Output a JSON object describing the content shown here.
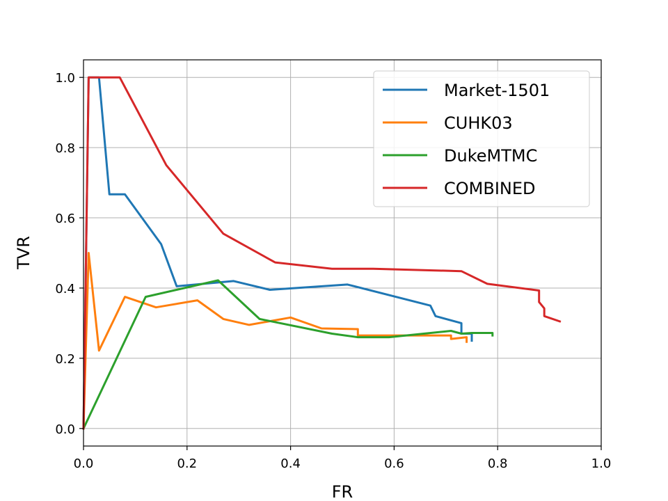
{
  "chart_data": {
    "type": "line",
    "title": "",
    "xlabel": "FR",
    "ylabel": "TVR",
    "xlim": [
      0.0,
      1.0
    ],
    "ylim": [
      -0.05,
      1.05
    ],
    "xticks": [
      0.0,
      0.2,
      0.4,
      0.6,
      0.8,
      1.0
    ],
    "xtick_labels": [
      "0.0",
      "0.2",
      "0.4",
      "0.6",
      "0.8",
      "1.0"
    ],
    "yticks": [
      0.0,
      0.2,
      0.4,
      0.6,
      0.8,
      1.0
    ],
    "ytick_labels": [
      "0.0",
      "0.2",
      "0.4",
      "0.6",
      "0.8",
      "1.0"
    ],
    "grid": true,
    "legend_position": "top-right",
    "series": [
      {
        "name": "Market-1501",
        "color": "#1f77b4",
        "x": [
          0.0,
          0.01,
          0.03,
          0.05,
          0.08,
          0.15,
          0.18,
          0.29,
          0.36,
          0.51,
          0.67,
          0.68,
          0.73,
          0.73,
          0.75,
          0.75
        ],
        "y": [
          0.0,
          1.0,
          1.0,
          0.667,
          0.667,
          0.525,
          0.405,
          0.42,
          0.395,
          0.41,
          0.35,
          0.32,
          0.3,
          0.27,
          0.27,
          0.25
        ]
      },
      {
        "name": "CUHK03",
        "color": "#ff7f0e",
        "x": [
          0.0,
          0.01,
          0.03,
          0.08,
          0.14,
          0.22,
          0.27,
          0.32,
          0.4,
          0.46,
          0.53,
          0.53,
          0.71,
          0.71,
          0.74,
          0.74
        ],
        "y": [
          0.0,
          0.5,
          0.222,
          0.375,
          0.345,
          0.365,
          0.312,
          0.295,
          0.316,
          0.285,
          0.283,
          0.265,
          0.265,
          0.255,
          0.26,
          0.247
        ]
      },
      {
        "name": "DukeMTMC",
        "color": "#2ca02c",
        "x": [
          0.0,
          0.12,
          0.26,
          0.34,
          0.48,
          0.53,
          0.59,
          0.71,
          0.73,
          0.75,
          0.79,
          0.79
        ],
        "y": [
          0.0,
          0.375,
          0.422,
          0.312,
          0.27,
          0.26,
          0.26,
          0.278,
          0.27,
          0.272,
          0.272,
          0.265
        ]
      },
      {
        "name": "COMBINED",
        "color": "#d62728",
        "x": [
          0.0,
          0.01,
          0.02,
          0.07,
          0.16,
          0.27,
          0.37,
          0.48,
          0.56,
          0.73,
          0.78,
          0.88,
          0.88,
          0.89,
          0.89,
          0.9,
          0.92
        ],
        "y": [
          0.0,
          1.0,
          1.0,
          1.0,
          0.75,
          0.555,
          0.473,
          0.455,
          0.455,
          0.448,
          0.412,
          0.393,
          0.36,
          0.342,
          0.32,
          0.315,
          0.305
        ]
      }
    ]
  }
}
